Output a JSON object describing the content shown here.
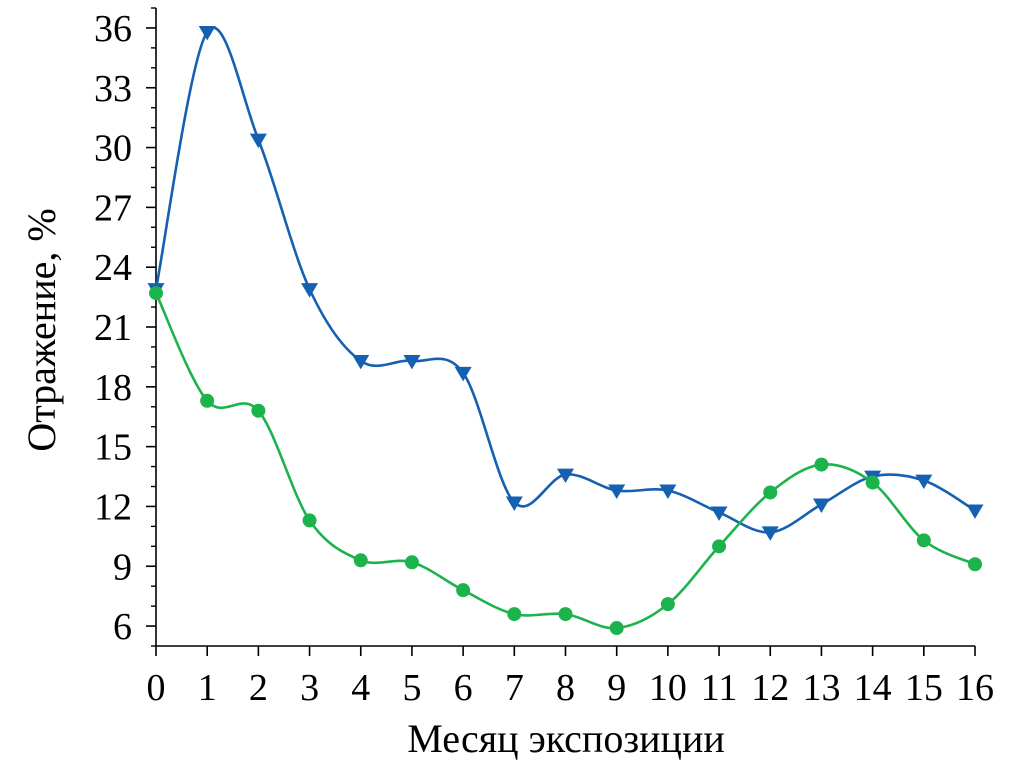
{
  "chart_data": {
    "type": "line",
    "xlabel": "Месяц экспозиции",
    "ylabel": "Отражение, %",
    "xlim": [
      0,
      16
    ],
    "ylim": [
      5,
      37
    ],
    "x_ticks": [
      0,
      1,
      2,
      3,
      4,
      5,
      6,
      7,
      8,
      9,
      10,
      11,
      12,
      13,
      14,
      15,
      16
    ],
    "y_ticks": [
      6,
      9,
      12,
      15,
      18,
      21,
      24,
      27,
      30,
      33,
      36
    ],
    "grid": false,
    "legend": "none",
    "smooth": true,
    "series": [
      {
        "color": "#1560b0",
        "marker": "triangle-down",
        "x": [
          0,
          1,
          2,
          3,
          4,
          5,
          6,
          7,
          8,
          9,
          10,
          11,
          12,
          13,
          14,
          15,
          16
        ],
        "values": [
          22.9,
          35.8,
          30.4,
          22.9,
          19.3,
          19.3,
          18.7,
          12.2,
          13.6,
          12.8,
          12.8,
          11.7,
          10.7,
          12.1,
          13.5,
          13.3,
          11.8
        ]
      },
      {
        "color": "#1db34c",
        "marker": "circle",
        "x": [
          0,
          1,
          2,
          3,
          4,
          5,
          6,
          7,
          8,
          9,
          10,
          11,
          12,
          13,
          14,
          15,
          16
        ],
        "values": [
          22.7,
          17.3,
          16.8,
          11.3,
          9.3,
          9.2,
          7.8,
          6.6,
          6.6,
          5.9,
          7.1,
          10.0,
          12.7,
          14.1,
          13.2,
          10.3,
          9.1
        ]
      }
    ]
  }
}
